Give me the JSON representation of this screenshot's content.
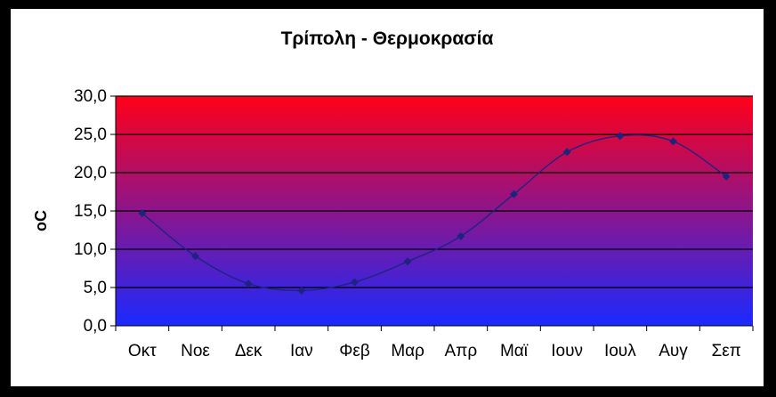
{
  "chart_data": {
    "type": "line",
    "title": "Τρίπολη - Θερμοκρασία",
    "xlabel": "",
    "ylabel": "oC",
    "categories": [
      "Οκτ",
      "Νοε",
      "Δεκ",
      "Ιαν",
      "Φεβ",
      "Μαρ",
      "Απρ",
      "Μαϊ",
      "Ιουν",
      "Ιουλ",
      "Αυγ",
      "Σεπ"
    ],
    "series": [
      {
        "values": [
          14.7,
          9.1,
          5.5,
          4.6,
          5.7,
          8.4,
          11.7,
          17.2,
          22.7,
          24.8,
          24.1,
          19.5
        ]
      }
    ],
    "ylim": [
      0,
      30
    ],
    "yticks": [
      "0,0",
      "5,0",
      "10,0",
      "15,0",
      "20,0",
      "25,0",
      "30,0"
    ],
    "grid": true,
    "colors": {
      "plot_top": "#ff0018",
      "plot_bottom": "#1a2aff",
      "line": "#1c2480",
      "marker": "#1c2480",
      "gridline": "#000000"
    }
  }
}
